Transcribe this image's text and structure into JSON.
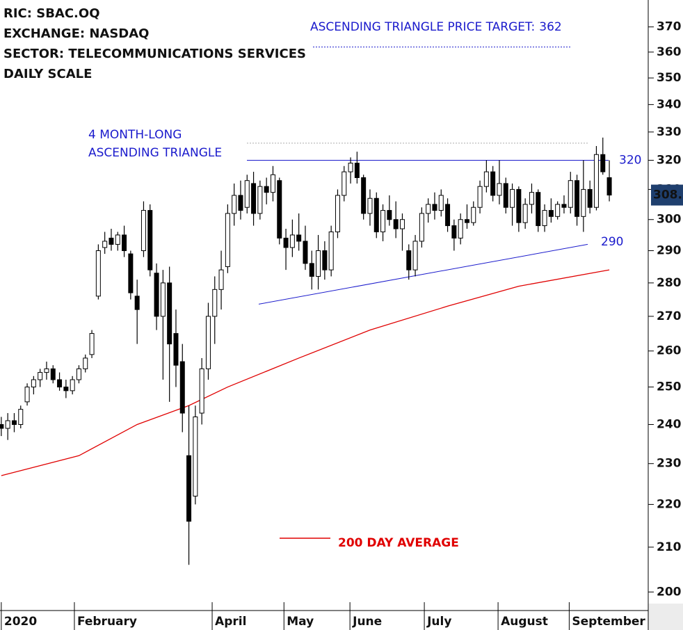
{
  "chart_data": {
    "type": "candlestick",
    "header": [
      "RIC: SBAC.OQ",
      "EXCHANGE: NASDAQ",
      "SECTOR: TELECOMMUNICATIONS SERVICES",
      "DAILY SCALE"
    ],
    "open": [
      240,
      239,
      241,
      240,
      246,
      250,
      252,
      254,
      255,
      252,
      250,
      249,
      252,
      255,
      259,
      276,
      291,
      294,
      292,
      295,
      289,
      276,
      290,
      303,
      283,
      270,
      280,
      265,
      257,
      232,
      222,
      243,
      255,
      270,
      278,
      285,
      302,
      308,
      304,
      312,
      302,
      311,
      309,
      313,
      294,
      291,
      295,
      293,
      286,
      282,
      290,
      284,
      296,
      308,
      316,
      319,
      314,
      302,
      307,
      296,
      303,
      300,
      297,
      290,
      284,
      293,
      302,
      305,
      303,
      305,
      298,
      294,
      300,
      299,
      304,
      311,
      316,
      308,
      312,
      304,
      310,
      299,
      305,
      309,
      298,
      303,
      301,
      305,
      304,
      313,
      301,
      310,
      304,
      322,
      314
    ],
    "high": [
      242,
      243,
      243,
      245,
      251,
      253,
      255,
      257,
      256,
      254,
      252,
      253,
      256,
      259,
      266,
      292,
      296,
      297,
      296,
      298,
      290,
      281,
      306,
      305,
      286,
      284,
      285,
      272,
      262,
      245,
      245,
      258,
      274,
      282,
      290,
      305,
      312,
      313,
      315,
      316,
      313,
      314,
      318,
      314,
      297,
      300,
      302,
      298,
      290,
      295,
      293,
      298,
      310,
      318,
      321,
      323,
      315,
      310,
      309,
      305,
      308,
      306,
      302,
      292,
      295,
      304,
      307,
      309,
      310,
      307,
      300,
      302,
      305,
      306,
      313,
      320,
      318,
      320,
      314,
      312,
      311,
      307,
      312,
      310,
      305,
      307,
      306,
      308,
      316,
      315,
      320,
      313,
      325,
      328,
      320
    ],
    "low": [
      237,
      236,
      238,
      239,
      245,
      248,
      250,
      252,
      251,
      249,
      247,
      248,
      251,
      254,
      258,
      275,
      289,
      290,
      290,
      288,
      275,
      262,
      288,
      282,
      266,
      252,
      246,
      250,
      238,
      206,
      220,
      240,
      252,
      262,
      272,
      283,
      298,
      300,
      302,
      298,
      300,
      305,
      306,
      292,
      284,
      288,
      290,
      284,
      278,
      278,
      281,
      282,
      294,
      306,
      312,
      312,
      300,
      298,
      294,
      293,
      298,
      294,
      290,
      281,
      282,
      291,
      299,
      300,
      301,
      296,
      290,
      292,
      297,
      298,
      302,
      309,
      306,
      305,
      302,
      298,
      296,
      297,
      302,
      296,
      296,
      299,
      300,
      302,
      302,
      298,
      296,
      302,
      303,
      315,
      306
    ],
    "close": [
      239,
      241,
      240,
      244,
      250,
      252,
      254,
      255,
      252,
      250,
      249,
      252,
      255,
      258,
      265,
      290,
      293,
      292,
      295,
      290,
      277,
      272,
      303,
      284,
      270,
      280,
      262,
      256,
      243,
      216,
      242,
      255,
      270,
      278,
      284,
      302,
      308,
      303,
      313,
      302,
      311,
      309,
      315,
      294,
      291,
      295,
      293,
      286,
      282,
      290,
      284,
      296,
      308,
      316,
      319,
      314,
      302,
      307,
      296,
      303,
      300,
      297,
      300,
      284,
      293,
      302,
      305,
      303,
      308,
      298,
      294,
      300,
      299,
      304,
      311,
      316,
      308,
      312,
      304,
      310,
      299,
      305,
      309,
      298,
      303,
      301,
      305,
      304,
      313,
      301,
      310,
      304,
      322,
      316,
      308.1
    ],
    "xlim": [
      -0.2,
      99.8
    ],
    "xticks": [
      {
        "value": 0,
        "label": "2020"
      },
      {
        "value": 11.3,
        "label": "February"
      },
      {
        "value": 32.6,
        "label": "April"
      },
      {
        "value": 43.7,
        "label": "May"
      },
      {
        "value": 53.9,
        "label": "June"
      },
      {
        "value": 65.4,
        "label": "July"
      },
      {
        "value": 76.8,
        "label": "August"
      },
      {
        "value": 87.8,
        "label": "September"
      }
    ],
    "ylim": [
      196,
      381
    ],
    "log_scale": true,
    "yticks": [
      200,
      210,
      220,
      230,
      240,
      250,
      260,
      270,
      280,
      290,
      300,
      310,
      320,
      330,
      340,
      350,
      360,
      370
    ],
    "series": [
      {
        "name": "200 DAY AVERAGE",
        "color": "#e00000",
        "x": [
          0,
          12,
          21,
          29,
          35,
          46,
          57,
          69,
          80,
          94
        ],
        "values": [
          227,
          232,
          240,
          245,
          250,
          258,
          266,
          273,
          279,
          284
        ]
      }
    ],
    "triangle_label": [
      "4 MONTH-LONG",
      "ASCENDING TRIANGLE"
    ],
    "target_text": "ASCENDING TRIANGLE PRICE TARGET:",
    "target": 362,
    "resistance": 320,
    "support_label": 290,
    "support_line": [
      273.6,
      292
    ],
    "prior_high": 326,
    "annotation_color": "#1a1acc"
  }
}
